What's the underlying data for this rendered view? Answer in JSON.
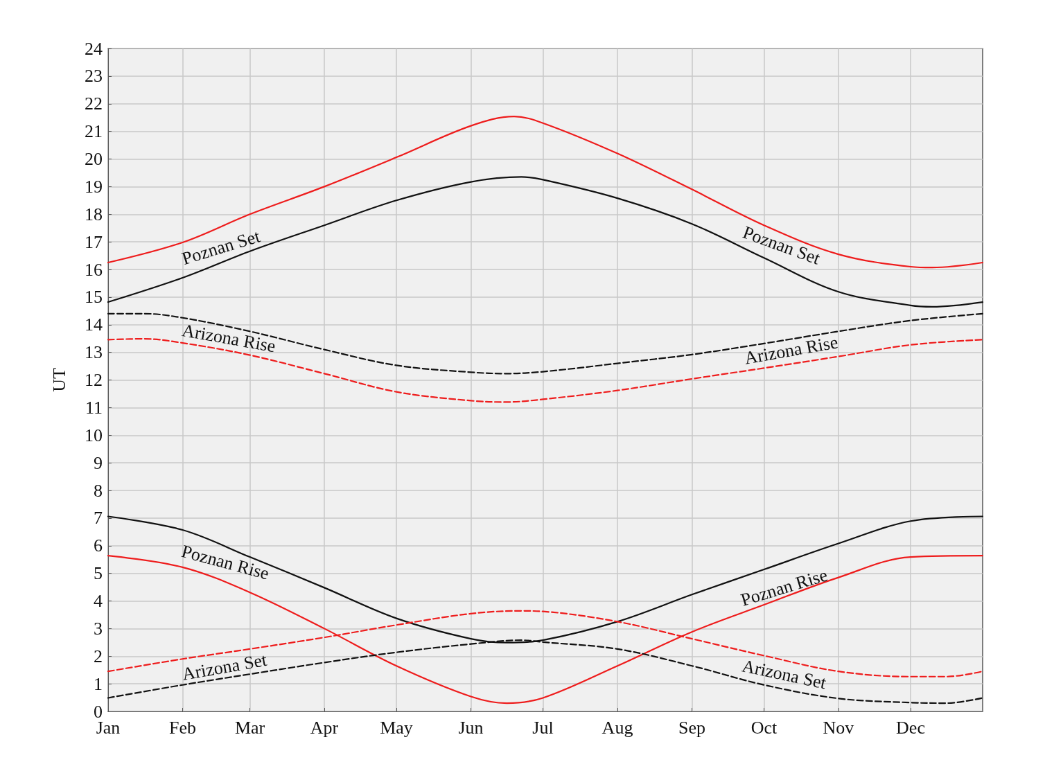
{
  "chart_data": {
    "type": "line",
    "ylabel": "UT",
    "xlim": [
      "--01-01",
      "--12-31"
    ],
    "ylim": [
      0,
      24
    ],
    "xticks": [
      {
        "value": "--01-01",
        "label": "Jan"
      },
      {
        "value": "--02-01",
        "label": "Feb"
      },
      {
        "value": "--03-01",
        "label": "Mar"
      },
      {
        "value": "--04-01",
        "label": "Apr"
      },
      {
        "value": "--05-01",
        "label": "May"
      },
      {
        "value": "--06-01",
        "label": "Jun"
      },
      {
        "value": "--07-01",
        "label": "Jul"
      },
      {
        "value": "--08-01",
        "label": "Aug"
      },
      {
        "value": "--09-01",
        "label": "Sep"
      },
      {
        "value": "--10-01",
        "label": "Oct"
      },
      {
        "value": "--11-01",
        "label": "Nov"
      },
      {
        "value": "--12-01",
        "label": "Dec"
      }
    ],
    "yticks": [
      0,
      1,
      2,
      3,
      4,
      5,
      6,
      7,
      8,
      9,
      10,
      11,
      12,
      13,
      14,
      15,
      16,
      17,
      18,
      19,
      20,
      21,
      22,
      23,
      24
    ],
    "grid": true,
    "marker": "none",
    "series": [
      {
        "color": "#ee1c1c",
        "line_style": "solid",
        "x": [
          "--01-01",
          "--02-01",
          "--03-01",
          "--04-01",
          "--05-01",
          "--06-01",
          "--06-19",
          "--07-01",
          "--08-01",
          "--09-01",
          "--10-01",
          "--11-01",
          "--12-01",
          "--12-10",
          "--12-31"
        ],
        "values": [
          16.25,
          16.98,
          18.0,
          19.0,
          20.06,
          21.2,
          21.54,
          21.3,
          20.2,
          18.9,
          17.6,
          16.55,
          16.1,
          16.07,
          16.25
        ]
      },
      {
        "color": "#111111",
        "line_style": "solid",
        "x": [
          "--01-01",
          "--02-01",
          "--03-01",
          "--04-01",
          "--05-01",
          "--06-01",
          "--06-22",
          "--07-01",
          "--08-01",
          "--09-01",
          "--10-01",
          "--11-01",
          "--12-01",
          "--12-10",
          "--12-31"
        ],
        "values": [
          14.82,
          15.7,
          16.66,
          17.6,
          18.5,
          19.17,
          19.35,
          19.25,
          18.58,
          17.65,
          16.42,
          15.19,
          14.7,
          14.65,
          14.82
        ]
      },
      {
        "color": "#111111",
        "line_style": "dashed",
        "x": [
          "--01-01",
          "--01-16",
          "--02-01",
          "--03-01",
          "--04-01",
          "--05-01",
          "--06-01",
          "--06-16",
          "--07-01",
          "--08-01",
          "--09-01",
          "--10-01",
          "--11-01",
          "--12-01",
          "--12-31"
        ],
        "values": [
          14.4,
          14.4,
          14.25,
          13.76,
          13.1,
          12.53,
          12.28,
          12.23,
          12.3,
          12.6,
          12.92,
          13.32,
          13.76,
          14.15,
          14.4
        ]
      },
      {
        "color": "#ee1c1c",
        "line_style": "dashed",
        "x": [
          "--01-01",
          "--01-16",
          "--02-01",
          "--03-01",
          "--04-01",
          "--05-01",
          "--06-01",
          "--06-16",
          "--07-01",
          "--08-01",
          "--09-01",
          "--10-01",
          "--11-01",
          "--12-01",
          "--12-31"
        ],
        "values": [
          13.46,
          13.49,
          13.34,
          12.9,
          12.23,
          11.57,
          11.25,
          11.2,
          11.3,
          11.62,
          12.04,
          12.43,
          12.85,
          13.27,
          13.46
        ]
      },
      {
        "color": "#111111",
        "line_style": "solid",
        "x": [
          "--01-01",
          "--02-01",
          "--03-01",
          "--04-01",
          "--05-01",
          "--06-01",
          "--06-16",
          "--07-01",
          "--08-01",
          "--09-01",
          "--10-01",
          "--11-01",
          "--12-01",
          "--12-31"
        ],
        "values": [
          7.06,
          6.57,
          5.59,
          4.48,
          3.37,
          2.63,
          2.49,
          2.58,
          3.25,
          4.23,
          5.14,
          6.08,
          6.89,
          7.06
        ]
      },
      {
        "color": "#ee1c1c",
        "line_style": "solid",
        "x": [
          "--01-01",
          "--02-01",
          "--03-01",
          "--04-01",
          "--05-01",
          "--06-01",
          "--06-16",
          "--07-01",
          "--08-01",
          "--09-01",
          "--10-01",
          "--11-01",
          "--12-01",
          "--12-31"
        ],
        "values": [
          5.64,
          5.22,
          4.31,
          3.0,
          1.65,
          0.54,
          0.3,
          0.49,
          1.65,
          2.88,
          3.86,
          4.85,
          5.59,
          5.64
        ]
      },
      {
        "color": "#ee1c1c",
        "line_style": "dashed",
        "x": [
          "--01-01",
          "--02-01",
          "--03-01",
          "--04-01",
          "--05-01",
          "--06-01",
          "--06-22",
          "--07-01",
          "--08-01",
          "--09-01",
          "--10-01",
          "--11-01",
          "--12-01",
          "--12-16",
          "--12-31"
        ],
        "values": [
          1.45,
          1.9,
          2.26,
          2.68,
          3.13,
          3.54,
          3.64,
          3.62,
          3.25,
          2.63,
          2.02,
          1.45,
          1.26,
          1.26,
          1.45
        ]
      },
      {
        "color": "#111111",
        "line_style": "dashed",
        "x": [
          "--01-01",
          "--02-01",
          "--03-01",
          "--04-01",
          "--05-01",
          "--06-01",
          "--06-22",
          "--07-01",
          "--08-01",
          "--09-01",
          "--10-01",
          "--11-01",
          "--12-01",
          "--12-16",
          "--12-31"
        ],
        "values": [
          0.49,
          0.96,
          1.35,
          1.77,
          2.14,
          2.44,
          2.58,
          2.51,
          2.26,
          1.65,
          0.96,
          0.47,
          0.32,
          0.3,
          0.49
        ]
      }
    ],
    "annotations": [
      "Poznan Set",
      "Poznan Set",
      "Arizona Rise",
      "Arizona Rise",
      "Poznan Rise",
      "Poznan Rise",
      "Arizona Set",
      "Arizona Set"
    ]
  }
}
